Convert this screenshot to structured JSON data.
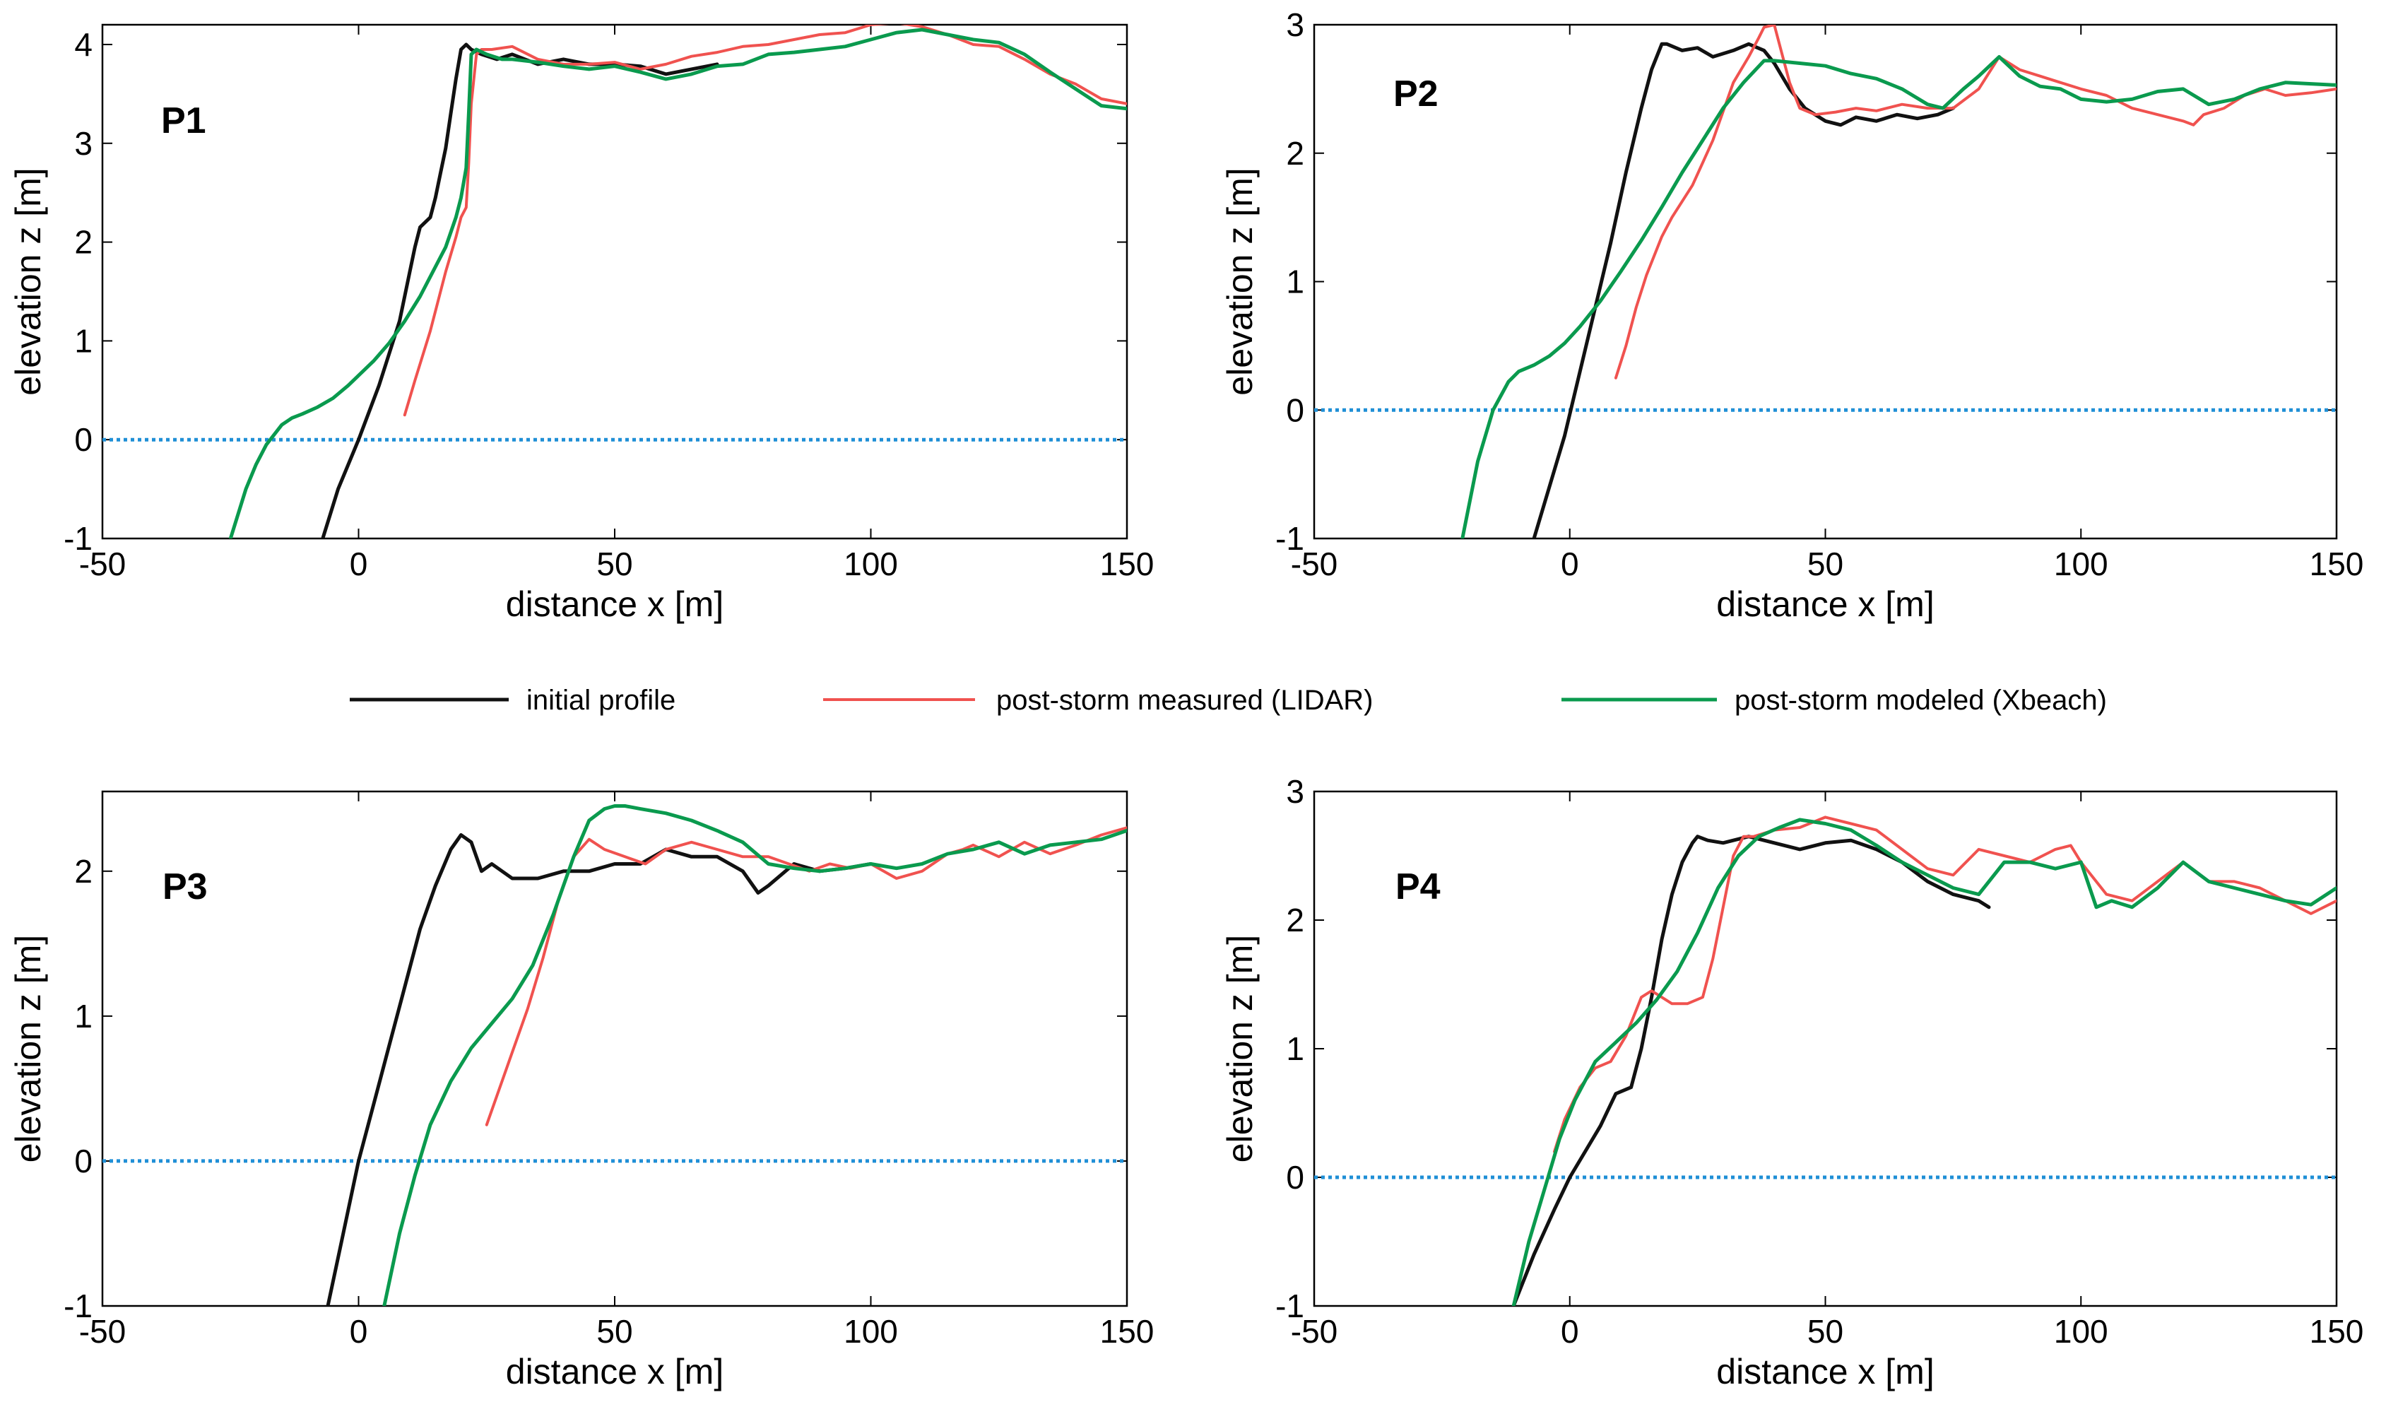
{
  "legend": [
    {
      "key": "initial",
      "label": "initial profile",
      "color": "#111111"
    },
    {
      "key": "measured",
      "label": "post-storm measured (LIDAR)",
      "color": "#f0524f"
    },
    {
      "key": "modeled",
      "label": "post-storm modeled (Xbeach)",
      "color": "#0a9a4e"
    }
  ],
  "colors": {
    "zero_line": "#1f8fd6",
    "axes": "#000000"
  },
  "chart_data": [
    {
      "type": "line",
      "panel": "P1",
      "xlabel": "distance x [m]",
      "ylabel": "elevation z [m]",
      "xlim": [
        -50,
        150
      ],
      "ylim": [
        -1,
        4.2
      ],
      "xticks": [
        -50,
        0,
        50,
        100,
        150
      ],
      "yticks": [
        -1,
        0,
        1,
        2,
        3,
        4
      ],
      "zero_line": 0,
      "series": [
        {
          "name": "initial profile",
          "key": "initial",
          "x": [
            -7,
            -4,
            0,
            4,
            8,
            10,
            11,
            12,
            14,
            15,
            16,
            17,
            18,
            19,
            20,
            21,
            22,
            24,
            27,
            30,
            35,
            40,
            45,
            50,
            55,
            60,
            65,
            70
          ],
          "y": [
            -1,
            -0.5,
            0,
            0.55,
            1.2,
            1.7,
            1.95,
            2.15,
            2.25,
            2.45,
            2.7,
            2.95,
            3.3,
            3.65,
            3.95,
            4.0,
            3.95,
            3.9,
            3.85,
            3.9,
            3.8,
            3.85,
            3.8,
            3.8,
            3.78,
            3.7,
            3.75,
            3.8
          ]
        },
        {
          "name": "post-storm measured (LIDAR)",
          "key": "measured",
          "x": [
            9,
            11,
            14,
            17,
            19,
            20,
            21,
            21.5,
            22,
            23,
            24,
            26,
            30,
            35,
            40,
            45,
            50,
            55,
            60,
            65,
            70,
            75,
            80,
            85,
            90,
            95,
            100,
            105,
            110,
            115,
            120,
            125,
            130,
            135,
            140,
            145,
            150
          ],
          "y": [
            0.25,
            0.6,
            1.1,
            1.7,
            2.05,
            2.25,
            2.35,
            2.8,
            3.4,
            3.9,
            3.95,
            3.95,
            3.98,
            3.85,
            3.8,
            3.8,
            3.82,
            3.75,
            3.8,
            3.88,
            3.92,
            3.98,
            4.0,
            4.05,
            4.1,
            4.12,
            4.2,
            4.22,
            4.18,
            4.1,
            4.0,
            3.98,
            3.85,
            3.7,
            3.6,
            3.45,
            3.4
          ]
        },
        {
          "name": "post-storm modeled (Xbeach)",
          "key": "modeled",
          "x": [
            -25,
            -22,
            -20,
            -18,
            -15,
            -13,
            -11,
            -8,
            -5,
            -2,
            0,
            3,
            6,
            9,
            12,
            15,
            17,
            19,
            20,
            21,
            21.5,
            22,
            23,
            25,
            28,
            30,
            35,
            40,
            45,
            50,
            55,
            60,
            65,
            70,
            75,
            80,
            85,
            90,
            95,
            100,
            105,
            110,
            115,
            120,
            125,
            130,
            135,
            140,
            145,
            150
          ],
          "y": [
            -1,
            -0.5,
            -0.25,
            -0.05,
            0.15,
            0.22,
            0.26,
            0.33,
            0.42,
            0.55,
            0.65,
            0.8,
            0.98,
            1.2,
            1.45,
            1.75,
            1.95,
            2.25,
            2.45,
            2.75,
            3.3,
            3.9,
            3.95,
            3.9,
            3.85,
            3.85,
            3.82,
            3.78,
            3.75,
            3.78,
            3.72,
            3.65,
            3.7,
            3.78,
            3.8,
            3.9,
            3.92,
            3.95,
            3.98,
            4.05,
            4.12,
            4.15,
            4.1,
            4.05,
            4.02,
            3.9,
            3.72,
            3.55,
            3.38,
            3.35
          ]
        }
      ]
    },
    {
      "type": "line",
      "panel": "P2",
      "xlabel": "distance x [m]",
      "ylabel": "elevation z [m]",
      "xlim": [
        -50,
        150
      ],
      "ylim": [
        -1,
        3
      ],
      "xticks": [
        -50,
        0,
        50,
        100,
        150
      ],
      "yticks": [
        -1,
        0,
        1,
        2,
        3
      ],
      "zero_line": 0,
      "series": [
        {
          "name": "initial profile",
          "key": "initial",
          "x": [
            -7,
            -4,
            -1,
            2,
            5,
            8,
            11,
            14,
            16,
            18,
            19,
            22,
            25,
            28,
            32,
            35,
            38,
            40,
            43,
            46,
            50,
            53,
            56,
            60,
            64,
            68,
            72,
            75
          ],
          "y": [
            -1,
            -0.6,
            -0.2,
            0.3,
            0.8,
            1.3,
            1.85,
            2.35,
            2.65,
            2.85,
            2.85,
            2.8,
            2.82,
            2.75,
            2.8,
            2.85,
            2.8,
            2.7,
            2.5,
            2.35,
            2.25,
            2.22,
            2.28,
            2.25,
            2.3,
            2.27,
            2.3,
            2.35
          ]
        },
        {
          "name": "post-storm measured (LIDAR)",
          "key": "measured",
          "x": [
            9,
            11,
            13,
            15,
            18,
            20,
            24,
            28,
            32,
            35,
            37,
            38,
            40,
            41,
            43,
            45,
            48,
            52,
            56,
            60,
            65,
            70,
            75,
            80,
            84,
            88,
            92,
            96,
            100,
            105,
            110,
            115,
            120,
            122,
            124,
            128,
            132,
            136,
            140,
            145,
            150
          ],
          "y": [
            0.25,
            0.5,
            0.8,
            1.05,
            1.35,
            1.5,
            1.75,
            2.1,
            2.55,
            2.75,
            2.9,
            2.98,
            3.0,
            2.85,
            2.55,
            2.35,
            2.3,
            2.32,
            2.35,
            2.33,
            2.38,
            2.35,
            2.35,
            2.5,
            2.75,
            2.65,
            2.6,
            2.55,
            2.5,
            2.45,
            2.35,
            2.3,
            2.25,
            2.22,
            2.3,
            2.35,
            2.45,
            2.5,
            2.45,
            2.47,
            2.5
          ]
        },
        {
          "name": "post-storm modeled (Xbeach)",
          "key": "modeled",
          "x": [
            -21,
            -18,
            -15,
            -12,
            -10,
            -7,
            -4,
            -1,
            2,
            6,
            10,
            14,
            18,
            22,
            26,
            30,
            34,
            38,
            40,
            45,
            50,
            55,
            60,
            65,
            70,
            73,
            77,
            80,
            84,
            88,
            92,
            96,
            100,
            105,
            110,
            115,
            120,
            125,
            130,
            135,
            140,
            145,
            150
          ],
          "y": [
            -1,
            -0.4,
            0.0,
            0.22,
            0.3,
            0.35,
            0.42,
            0.52,
            0.65,
            0.85,
            1.08,
            1.32,
            1.58,
            1.85,
            2.1,
            2.35,
            2.55,
            2.72,
            2.72,
            2.7,
            2.68,
            2.62,
            2.58,
            2.5,
            2.38,
            2.35,
            2.5,
            2.6,
            2.75,
            2.6,
            2.52,
            2.5,
            2.42,
            2.4,
            2.42,
            2.48,
            2.5,
            2.38,
            2.42,
            2.5,
            2.55,
            2.54,
            2.53
          ]
        }
      ]
    },
    {
      "type": "line",
      "panel": "P3",
      "xlabel": "distance x [m]",
      "ylabel": "elevation z [m]",
      "xlim": [
        -50,
        150
      ],
      "ylim": [
        -1,
        2.55
      ],
      "xticks": [
        -50,
        0,
        50,
        100,
        150
      ],
      "yticks": [
        -1,
        0,
        1,
        2
      ],
      "zero_line": 0,
      "series": [
        {
          "name": "initial profile",
          "key": "initial",
          "x": [
            -6,
            -3,
            0,
            3,
            6,
            9,
            12,
            15,
            18,
            20,
            22,
            24,
            26,
            30,
            35,
            40,
            45,
            50,
            55,
            60,
            65,
            70,
            75,
            78,
            80,
            85,
            90,
            95,
            100
          ],
          "y": [
            -1,
            -0.5,
            0.0,
            0.4,
            0.8,
            1.2,
            1.6,
            1.9,
            2.15,
            2.25,
            2.2,
            2.0,
            2.05,
            1.95,
            1.95,
            2.0,
            2.0,
            2.05,
            2.05,
            2.15,
            2.1,
            2.1,
            2.0,
            1.85,
            1.9,
            2.05,
            2.0,
            2.02,
            2.05
          ]
        },
        {
          "name": "post-storm measured (LIDAR)",
          "key": "measured",
          "x": [
            25,
            27,
            30,
            33,
            36,
            39,
            42,
            45,
            48,
            52,
            56,
            60,
            65,
            70,
            75,
            80,
            84,
            88,
            92,
            96,
            100,
            105,
            110,
            115,
            118,
            120,
            125,
            130,
            135,
            140,
            145,
            150
          ],
          "y": [
            0.25,
            0.45,
            0.75,
            1.05,
            1.4,
            1.8,
            2.1,
            2.22,
            2.15,
            2.1,
            2.05,
            2.15,
            2.2,
            2.15,
            2.1,
            2.1,
            2.05,
            2.0,
            2.05,
            2.02,
            2.05,
            1.95,
            2.0,
            2.12,
            2.15,
            2.18,
            2.1,
            2.2,
            2.12,
            2.18,
            2.25,
            2.3
          ]
        },
        {
          "name": "post-storm modeled (Xbeach)",
          "key": "modeled",
          "x": [
            5,
            8,
            11,
            14,
            18,
            22,
            26,
            30,
            34,
            38,
            42,
            45,
            48,
            50,
            52,
            55,
            60,
            65,
            70,
            75,
            80,
            85,
            90,
            95,
            100,
            105,
            110,
            115,
            120,
            125,
            130,
            135,
            140,
            145,
            150
          ],
          "y": [
            -1,
            -0.5,
            -0.1,
            0.25,
            0.55,
            0.78,
            0.95,
            1.12,
            1.35,
            1.7,
            2.1,
            2.35,
            2.43,
            2.45,
            2.45,
            2.43,
            2.4,
            2.35,
            2.28,
            2.2,
            2.05,
            2.02,
            2.0,
            2.02,
            2.05,
            2.02,
            2.05,
            2.12,
            2.15,
            2.2,
            2.12,
            2.18,
            2.2,
            2.22,
            2.28
          ]
        }
      ]
    },
    {
      "type": "line",
      "panel": "P4",
      "xlabel": "distance x [m]",
      "ylabel": "elevation z [m]",
      "xlim": [
        -50,
        150
      ],
      "ylim": [
        -1,
        3
      ],
      "xticks": [
        -50,
        0,
        50,
        100,
        150
      ],
      "yticks": [
        -1,
        0,
        1,
        2,
        3
      ],
      "zero_line": 0,
      "series": [
        {
          "name": "initial profile",
          "key": "initial",
          "x": [
            -11,
            -7,
            -3,
            0,
            3,
            6,
            9,
            12,
            14,
            16,
            18,
            20,
            22,
            24,
            25,
            27,
            30,
            35,
            40,
            45,
            50,
            55,
            60,
            65,
            70,
            75,
            80,
            82
          ],
          "y": [
            -1,
            -0.6,
            -0.25,
            0.0,
            0.2,
            0.4,
            0.65,
            0.7,
            1.0,
            1.4,
            1.85,
            2.2,
            2.45,
            2.6,
            2.65,
            2.62,
            2.6,
            2.65,
            2.6,
            2.55,
            2.6,
            2.62,
            2.55,
            2.45,
            2.3,
            2.2,
            2.15,
            2.1
          ]
        },
        {
          "name": "post-storm measured (LIDAR)",
          "key": "measured",
          "x": [
            -3,
            -1,
            2,
            5,
            8,
            11,
            14,
            16,
            18,
            20,
            23,
            26,
            28,
            30,
            32,
            34,
            36,
            40,
            45,
            50,
            55,
            60,
            65,
            70,
            75,
            80,
            85,
            90,
            95,
            98,
            100,
            105,
            110,
            115,
            120,
            125,
            130,
            135,
            140,
            145,
            150
          ],
          "y": [
            0.2,
            0.45,
            0.7,
            0.85,
            0.9,
            1.1,
            1.4,
            1.45,
            1.4,
            1.35,
            1.35,
            1.4,
            1.7,
            2.1,
            2.5,
            2.65,
            2.65,
            2.7,
            2.72,
            2.8,
            2.75,
            2.7,
            2.55,
            2.4,
            2.35,
            2.55,
            2.5,
            2.45,
            2.55,
            2.58,
            2.45,
            2.2,
            2.15,
            2.3,
            2.45,
            2.3,
            2.3,
            2.25,
            2.15,
            2.05,
            2.15
          ]
        },
        {
          "name": "post-storm modeled (Xbeach)",
          "key": "modeled",
          "x": [
            -11,
            -8,
            -5,
            -2,
            1,
            5,
            9,
            13,
            17,
            21,
            25,
            29,
            33,
            37,
            41,
            45,
            50,
            55,
            60,
            65,
            70,
            75,
            80,
            82,
            85,
            90,
            95,
            100,
            103,
            106,
            110,
            115,
            120,
            125,
            130,
            135,
            140,
            145,
            150
          ],
          "y": [
            -1,
            -0.5,
            -0.1,
            0.3,
            0.6,
            0.9,
            1.05,
            1.2,
            1.38,
            1.6,
            1.9,
            2.25,
            2.5,
            2.65,
            2.72,
            2.78,
            2.75,
            2.7,
            2.58,
            2.45,
            2.35,
            2.25,
            2.2,
            2.3,
            2.45,
            2.45,
            2.4,
            2.45,
            2.1,
            2.15,
            2.1,
            2.25,
            2.45,
            2.3,
            2.25,
            2.2,
            2.15,
            2.12,
            2.25
          ]
        }
      ]
    }
  ]
}
